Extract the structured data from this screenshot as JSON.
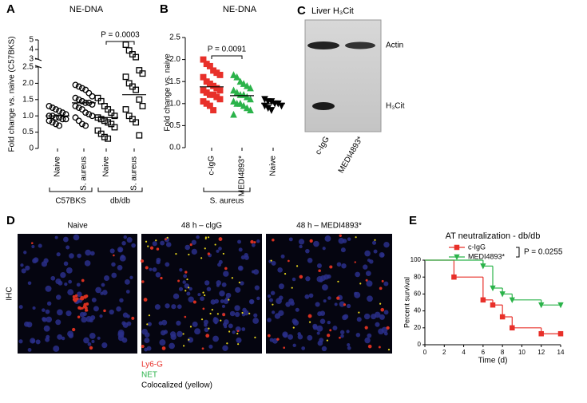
{
  "chart_data": [
    {
      "type": "dot",
      "panel_label": "A",
      "title": "NE-DNA",
      "y_label": "Fold change vs. naive (C57BKS)",
      "categories": [
        "Naive",
        "S. aureus",
        "Naive",
        "S. aureus"
      ],
      "group_labels": [
        "C57BKS",
        "db/db"
      ],
      "values": [
        [
          1.3,
          1.25,
          1.2,
          1.15,
          1.1,
          1.05,
          1.0,
          1.0,
          0.95,
          0.95,
          0.9,
          0.9,
          0.85,
          0.8,
          0.75,
          0.7
        ],
        [
          1.95,
          1.9,
          1.85,
          1.8,
          1.7,
          1.6,
          1.55,
          1.5,
          1.45,
          1.4,
          1.4,
          1.35,
          1.3,
          1.25,
          1.2,
          1.1,
          1.05,
          1.0,
          0.95,
          0.85,
          0.75,
          0.7
        ],
        [
          1.55,
          1.45,
          1.3,
          1.2,
          1.1,
          1.0,
          0.95,
          0.9,
          0.85,
          0.8,
          0.75,
          0.65,
          0.55,
          0.45,
          0.35,
          0.3
        ],
        [
          4.5,
          3.9,
          3.5,
          3.2,
          2.4,
          2.3,
          2.2,
          2.0,
          1.9,
          1.8,
          1.5,
          1.3,
          1.2,
          1.0,
          0.9,
          0.8,
          0.4
        ]
      ],
      "means": [
        1.0,
        1.4,
        0.95,
        1.65
      ],
      "markers": [
        "circle",
        "circle",
        "square",
        "square"
      ],
      "colors": [
        "#000000",
        "#000000",
        "#000000",
        "#000000"
      ],
      "filled": false,
      "ylim": [
        0,
        2.5
      ],
      "yticks": [
        0,
        0.5,
        {
          "value": 1.0,
          "label": "1.0"
        },
        1.5,
        {
          "value": 2.0,
          "label": "2.0"
        },
        2.5
      ],
      "ylim_upper": [
        3,
        5
      ],
      "yticks_upper": [
        3,
        4,
        5
      ],
      "annotation": "P = 0.0003"
    },
    {
      "type": "dot",
      "panel_label": "B",
      "title": "NE-DNA",
      "y_label": "Fold change vs. naive",
      "categories": [
        "c-IgG",
        "MEDI4893*",
        "Naive"
      ],
      "group_labels": [
        "S. aureus"
      ],
      "values": [
        [
          2.0,
          1.9,
          1.85,
          1.75,
          1.7,
          1.65,
          1.6,
          1.5,
          1.45,
          1.4,
          1.35,
          1.3,
          1.3,
          1.25,
          1.2,
          1.2,
          1.15,
          1.1,
          1.05,
          1.0,
          0.95,
          0.85
        ],
        [
          1.65,
          1.6,
          1.5,
          1.45,
          1.4,
          1.35,
          1.3,
          1.25,
          1.2,
          1.2,
          1.15,
          1.1,
          1.05,
          1.0,
          1.0,
          0.95,
          0.9,
          0.85,
          0.75
        ],
        [
          1.1,
          1.05,
          1.05,
          1.0,
          1.0,
          0.95,
          0.95,
          0.9,
          0.85
        ]
      ],
      "means": [
        1.38,
        1.18,
        1.0
      ],
      "markers": [
        "square",
        "triangle",
        "triangle-down"
      ],
      "colors": [
        "#e8302a",
        "#2bb34a",
        "#000000"
      ],
      "filled": true,
      "ylim": [
        0,
        2.5
      ],
      "yticks": [
        {
          "value": 0,
          "label": "0.0"
        },
        0.5,
        {
          "value": 1.0,
          "label": "1.0"
        },
        1.5,
        {
          "value": 2.0,
          "label": "2.0"
        },
        2.5
      ],
      "annotation": "P = 0.0091"
    },
    {
      "type": "survival",
      "panel_label": "E",
      "title": "AT neutralization - db/db",
      "x_label": "Time (d)",
      "y_label": "Percent survival",
      "series": [
        {
          "name": "c-IgG",
          "color": "#e8302a",
          "marker": "square",
          "x": [
            0,
            3,
            6,
            7,
            8,
            9,
            12,
            14
          ],
          "values": [
            100,
            80,
            53,
            47,
            33,
            20,
            13,
            13
          ]
        },
        {
          "name": "MEDI4893*",
          "color": "#2bb34a",
          "marker": "triangle-down",
          "x": [
            0,
            6,
            7,
            8,
            9,
            12,
            14
          ],
          "values": [
            100,
            93,
            67,
            60,
            53,
            47,
            47
          ]
        }
      ],
      "xlim": [
        0,
        14
      ],
      "xticks": [
        0,
        2,
        4,
        6,
        8,
        10,
        12,
        14
      ],
      "ylim": [
        0,
        100
      ],
      "yticks": [
        0,
        20,
        40,
        60,
        80,
        100
      ],
      "annotation": "P = 0.0255"
    }
  ],
  "blot": {
    "panel_label": "C",
    "title": "Liver H₃Cit",
    "bands": [
      "Actin",
      "H₃Cit"
    ],
    "lanes": [
      "c-IgG",
      "MEDI4893*"
    ]
  },
  "ihc": {
    "panel_label": "D",
    "row_label": "IHC",
    "images": [
      "Naive",
      "48 h – clgG",
      "48 h – MEDI4893*"
    ],
    "legend": [
      {
        "text": "Ly6-G",
        "color": "#e8302a"
      },
      {
        "text": "NET",
        "color": "#2bb34a"
      },
      {
        "text": "Colocalized (yellow)",
        "color": "#000000"
      }
    ]
  }
}
